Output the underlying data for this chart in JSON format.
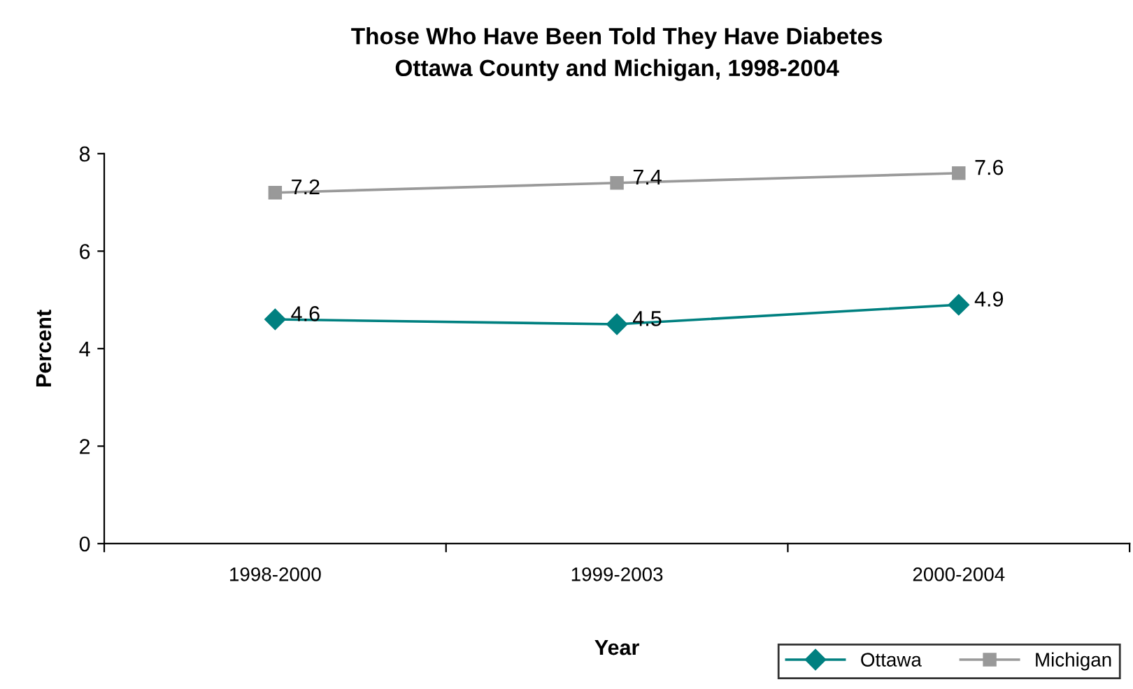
{
  "chart_data": {
    "type": "line",
    "title": "Those Who Have Been Told They Have Diabetes\nOttawa County and Michigan, 1998-2004",
    "xlabel": "Year",
    "ylabel": "Percent",
    "categories": [
      "1998-2000",
      "1999-2003",
      "2000-2004"
    ],
    "series": [
      {
        "name": "Ottawa",
        "color": "#008080",
        "marker": "diamond",
        "values": [
          4.6,
          4.5,
          4.9
        ]
      },
      {
        "name": "Michigan",
        "color": "#999999",
        "marker": "square",
        "values": [
          7.2,
          7.4,
          7.6
        ]
      }
    ],
    "ylim": [
      0,
      8
    ],
    "yticks": [
      0,
      2,
      4,
      6,
      8
    ],
    "grid": false,
    "legend": "bottom right",
    "data_labels": true,
    "line_style": "solid"
  }
}
